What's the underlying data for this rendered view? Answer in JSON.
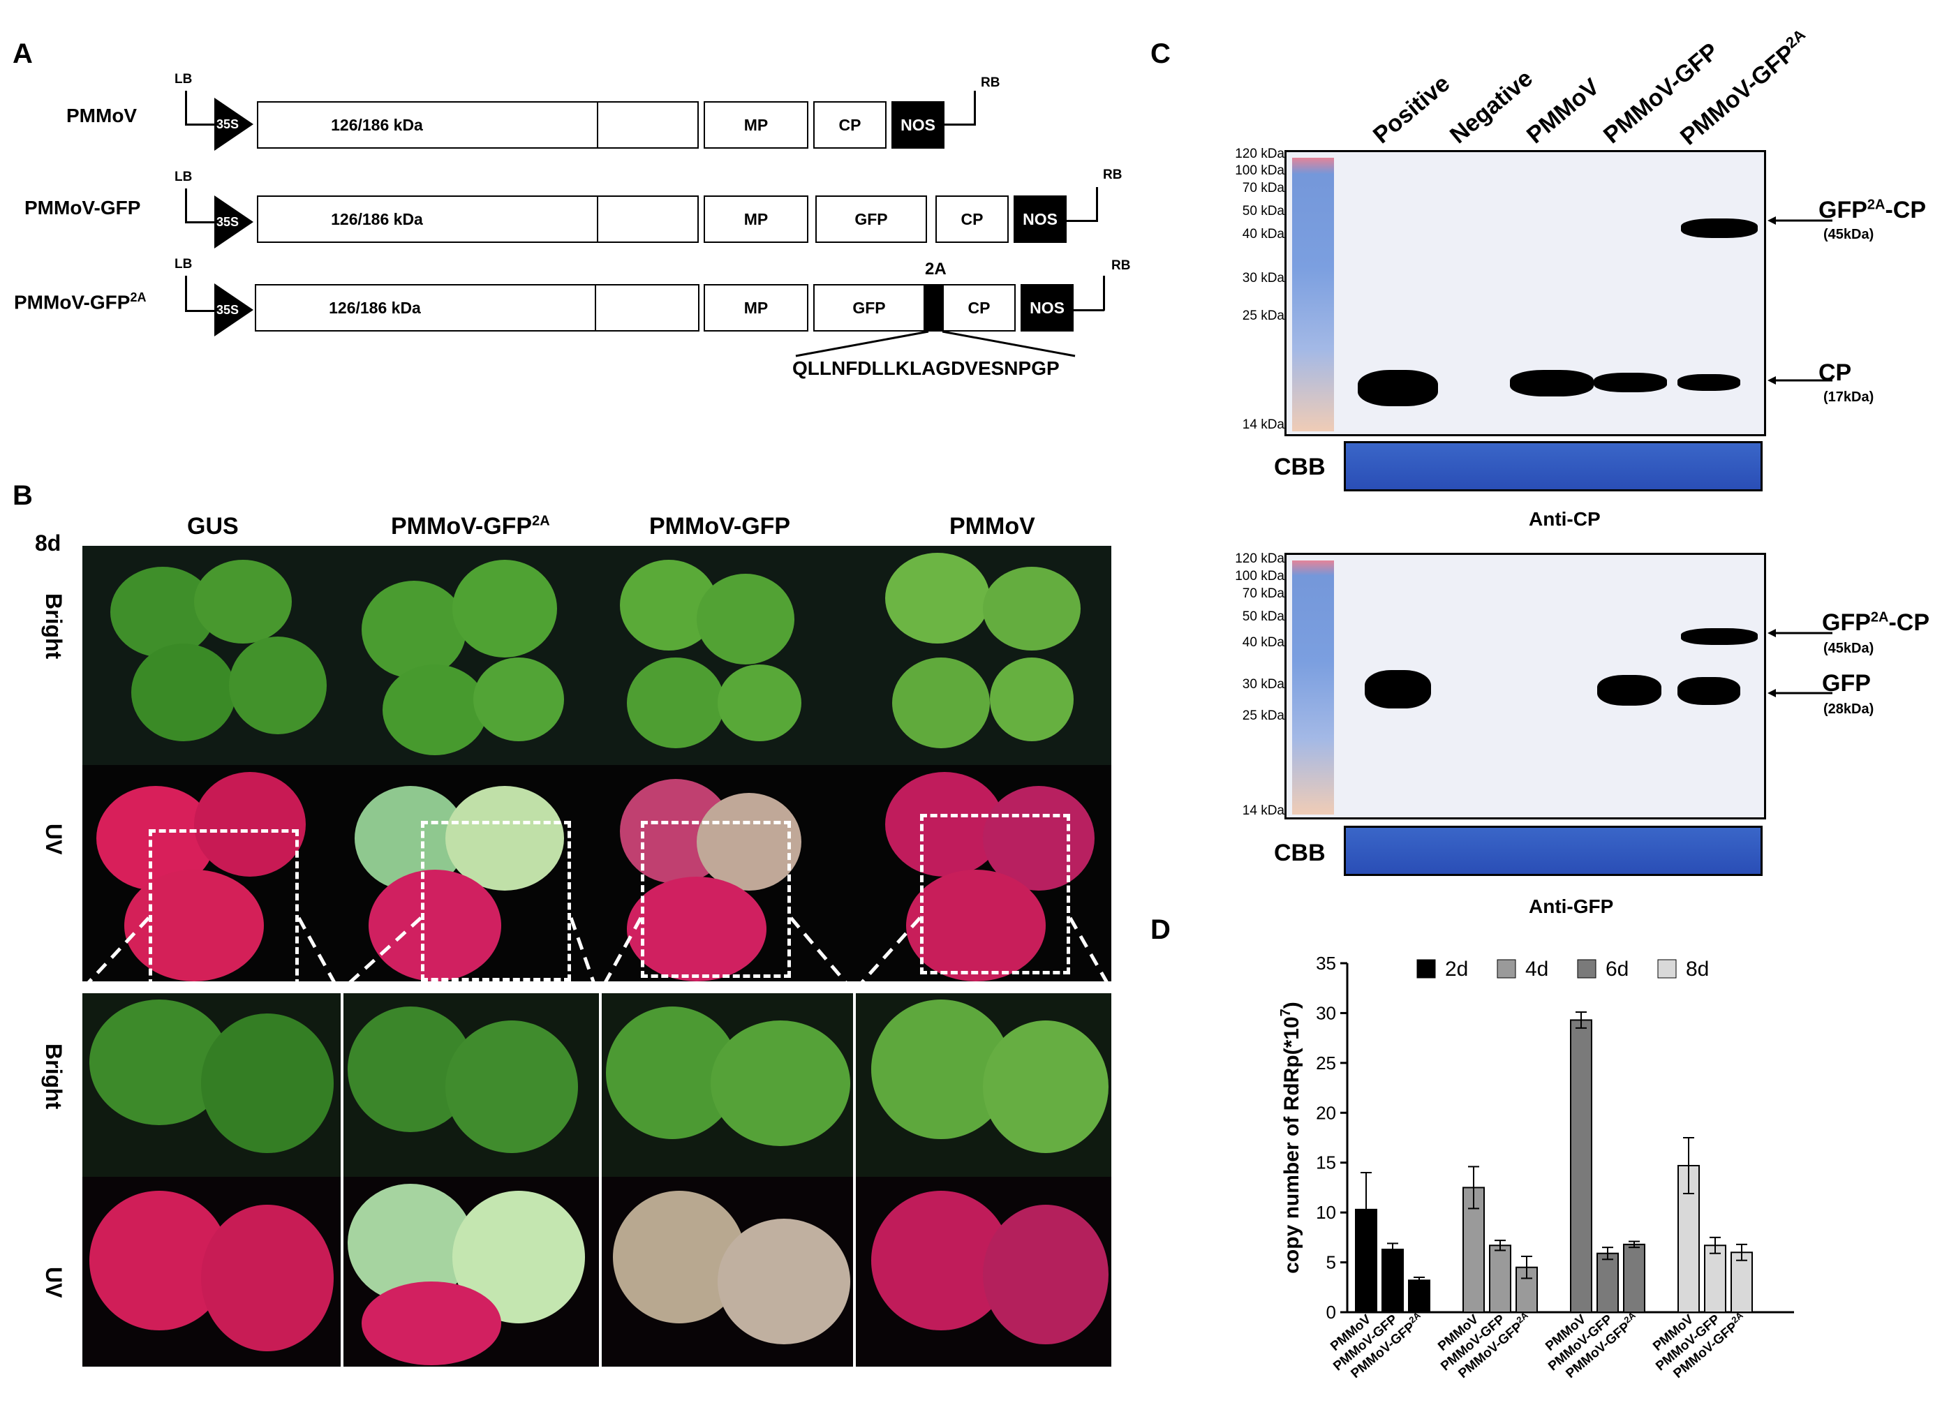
{
  "panels": {
    "a": "A",
    "b": "B",
    "c": "C",
    "d": "D"
  },
  "panel_a": {
    "constructs": [
      {
        "name": "PMMoV"
      },
      {
        "name": "PMMoV-GFP"
      },
      {
        "name": "PMMoV-GFP",
        "sup": "2A"
      }
    ],
    "lb": "LB",
    "rb": "RB",
    "promoter": "35S",
    "genes": {
      "rep": "126/186 kDa",
      "mp": "MP",
      "cp": "CP",
      "gfp": "GFP",
      "nos": "NOS",
      "two_a": "2A"
    },
    "peptide": "QLLNFDLLKLAGDVESNPGP"
  },
  "panel_b": {
    "day": "8d",
    "columns": [
      {
        "label": "GUS",
        "sup": ""
      },
      {
        "label": "PMMoV-GFP",
        "sup": "2A"
      },
      {
        "label": "PMMoV-GFP",
        "sup": ""
      },
      {
        "label": "PMMoV",
        "sup": ""
      }
    ],
    "rows": [
      "Bright",
      "UV",
      "Bright",
      "UV"
    ]
  },
  "panel_c": {
    "lanes": [
      "Positive",
      "Negative",
      "PMMoV",
      "PMMoV-GFP",
      "PMMoV-GFP"
    ],
    "lane5_sup": "2A",
    "markers": [
      "120 kDa",
      "100 kDa",
      "70 kDa",
      "50 kDa",
      "40 kDa",
      "30 kDa",
      "25 kDa",
      "14 kDa"
    ],
    "markers2": [
      "120 kDa",
      "100 kDa",
      "70 kDa",
      "50 kDa",
      "40 kDa",
      "30 kDa",
      "25 kDa",
      "14 kDa"
    ],
    "cbb": "CBB",
    "blot1": {
      "title": "Anti-CP",
      "labels": [
        {
          "name": "GFP",
          "sup": "2A",
          "tail": "-CP",
          "kda": "(45kDa)"
        },
        {
          "name": "CP",
          "sup": "",
          "tail": "",
          "kda": "(17kDa)"
        }
      ]
    },
    "blot2": {
      "title": "Anti-GFP",
      "labels": [
        {
          "name": "GFP",
          "sup": "2A",
          "tail": "-CP",
          "kda": "(45kDa)"
        },
        {
          "name": "GFP",
          "sup": "",
          "tail": "",
          "kda": "(28kDa)"
        }
      ]
    }
  },
  "chart_data": {
    "type": "bar",
    "ylabel": "copy number of RdRp(*10",
    "ylabel_sup": "7",
    "ylabel_close": ")",
    "ylim": [
      0,
      35
    ],
    "yticks": [
      0,
      5,
      10,
      15,
      20,
      25,
      30,
      35
    ],
    "legend_position": "top",
    "groups": [
      {
        "name": "2d",
        "color": "#000000",
        "values": [
          10.3,
          6.3,
          3.2
        ],
        "errors": [
          3.7,
          0.6,
          0.3
        ]
      },
      {
        "name": "4d",
        "color": "#9a9a9a",
        "values": [
          12.5,
          6.7,
          4.5
        ],
        "errors": [
          2.1,
          0.5,
          1.1
        ]
      },
      {
        "name": "6d",
        "color": "#7a7a7a",
        "values": [
          29.3,
          5.9,
          6.8
        ],
        "errors": [
          0.8,
          0.6,
          0.3
        ]
      },
      {
        "name": "8d",
        "color": "#d9d9d9",
        "values": [
          14.7,
          6.7,
          6.0
        ],
        "errors": [
          2.8,
          0.8,
          0.8
        ]
      }
    ],
    "categories": [
      "PMMoV",
      "PMMoV-GFP",
      "PMMoV-GFP"
    ],
    "category3_sup": "2A"
  }
}
